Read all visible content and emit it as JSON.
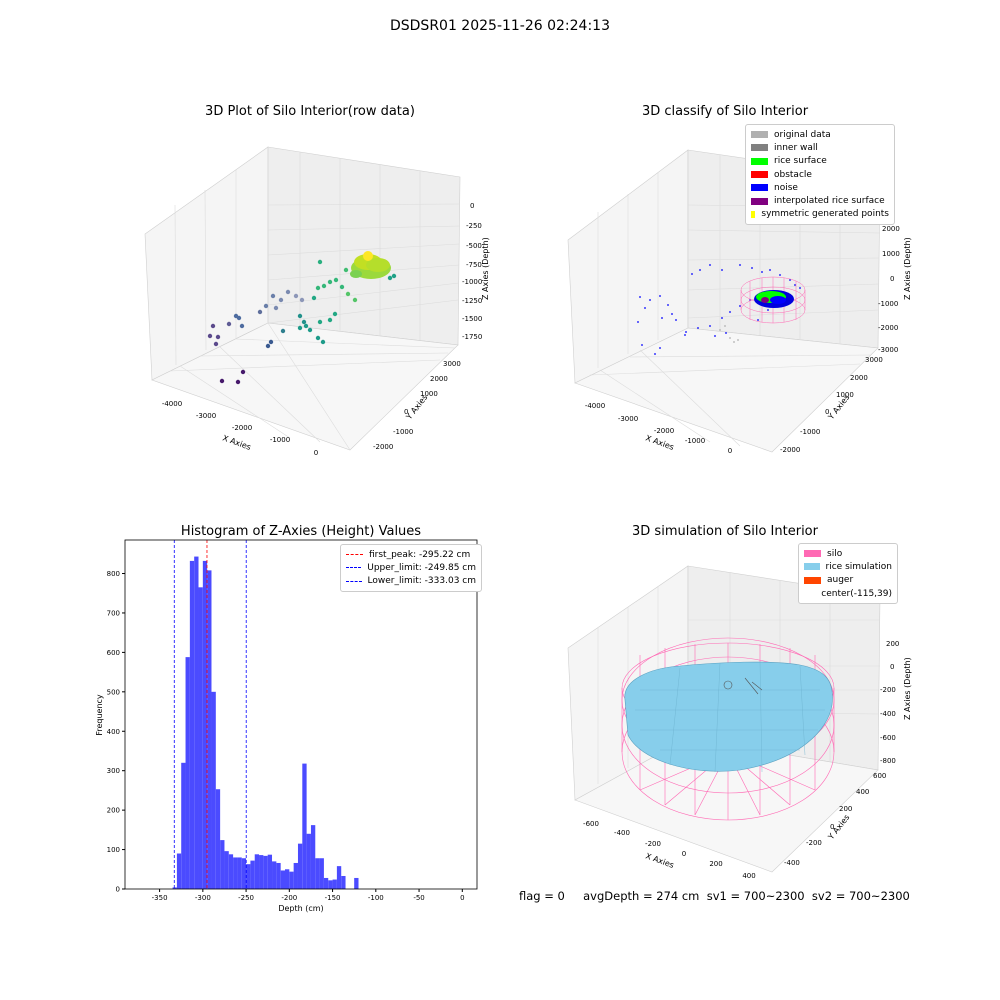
{
  "figure": {
    "title": "DSDSR01 2025-11-26 02:24:13",
    "footer": "flag = 0     avgDepth = 274 cm  sv1 = 700~2300  sv2 = 700~2300"
  },
  "colors": {
    "grid": "#d9d9d9",
    "pane": "#f2f2f2",
    "hist_bar": "#4b4bff",
    "first_peak": "#ff0000",
    "limits": "#0000ff",
    "silo": "#ff69b4",
    "rice_simulation": "#87ceeb",
    "auger": "#ff4500"
  },
  "chart_data": [
    {
      "type": "scatter",
      "subtype": "3d",
      "title": "3D Plot of Silo Interior(row data)",
      "xlabel": "X Axies",
      "ylabel": "Y Axies",
      "zlabel": "Z Axies (Depth)",
      "x_ticks": [
        "-4000",
        "-3000",
        "-2000",
        "-1000",
        "0"
      ],
      "y_ticks": [
        "-2000",
        "-1000",
        "0",
        "1000",
        "2000",
        "3000"
      ],
      "z_ticks": [
        "0",
        "-250",
        "-500",
        "-750",
        "-1000",
        "-1250",
        "-1500",
        "-1750"
      ],
      "colormap": "viridis",
      "clusters": [
        "sparse noise points (purple-teal)",
        "rice surface points (yellow-green)"
      ]
    },
    {
      "type": "scatter",
      "subtype": "3d",
      "title": "3D classify of Silo Interior",
      "xlabel": "X Axies",
      "ylabel": "Y Axies",
      "zlabel": "Z Axies (Depth)",
      "x_ticks": [
        "-4000",
        "-3000",
        "-2000",
        "-1000",
        "0"
      ],
      "y_ticks": [
        "-2000",
        "-1000",
        "0",
        "1000",
        "2000",
        "3000"
      ],
      "z_ticks": [
        "2000",
        "1000",
        "0",
        "-1000",
        "-2000",
        "-3000"
      ],
      "legend_position": "top-right",
      "legend": [
        {
          "label": "original data",
          "color": "#b0b0b0"
        },
        {
          "label": "inner wall",
          "color": "#808080"
        },
        {
          "label": "rice surface",
          "color": "#00ff00"
        },
        {
          "label": "obstacle",
          "color": "#ff0000"
        },
        {
          "label": "noise",
          "color": "#0000ff"
        },
        {
          "label": "interpolated rice surface",
          "color": "#800080"
        },
        {
          "label": "symmetric generated points",
          "color": "#ffff00"
        }
      ]
    },
    {
      "type": "bar",
      "subtype": "histogram",
      "title": "Histogram of Z-Axies (Height) Values",
      "xlabel": "Depth (cm)",
      "ylabel": "Frequency",
      "xlim": [
        -390,
        17
      ],
      "ylim": [
        0,
        885
      ],
      "x_ticks": [
        -350,
        -300,
        -250,
        -200,
        -150,
        -100,
        -50,
        0
      ],
      "y_ticks": [
        0,
        100,
        200,
        300,
        400,
        500,
        600,
        700,
        800
      ],
      "bin_width": 5,
      "bins": [
        {
          "start": -335,
          "count": 4
        },
        {
          "start": -330,
          "count": 90
        },
        {
          "start": -325,
          "count": 320
        },
        {
          "start": -320,
          "count": 588
        },
        {
          "start": -315,
          "count": 832
        },
        {
          "start": -310,
          "count": 843
        },
        {
          "start": -305,
          "count": 765
        },
        {
          "start": -300,
          "count": 832
        },
        {
          "start": -295,
          "count": 808
        },
        {
          "start": -290,
          "count": 500
        },
        {
          "start": -285,
          "count": 253
        },
        {
          "start": -280,
          "count": 124
        },
        {
          "start": -275,
          "count": 96
        },
        {
          "start": -270,
          "count": 88
        },
        {
          "start": -265,
          "count": 80
        },
        {
          "start": -260,
          "count": 80
        },
        {
          "start": -255,
          "count": 78
        },
        {
          "start": -250,
          "count": 63
        },
        {
          "start": -245,
          "count": 72
        },
        {
          "start": -240,
          "count": 88
        },
        {
          "start": -235,
          "count": 86
        },
        {
          "start": -230,
          "count": 84
        },
        {
          "start": -225,
          "count": 87
        },
        {
          "start": -220,
          "count": 70
        },
        {
          "start": -215,
          "count": 66
        },
        {
          "start": -210,
          "count": 47
        },
        {
          "start": -205,
          "count": 50
        },
        {
          "start": -200,
          "count": 44
        },
        {
          "start": -195,
          "count": 66
        },
        {
          "start": -190,
          "count": 115
        },
        {
          "start": -185,
          "count": 318
        },
        {
          "start": -180,
          "count": 140
        },
        {
          "start": -175,
          "count": 162
        },
        {
          "start": -170,
          "count": 78
        },
        {
          "start": -165,
          "count": 78
        },
        {
          "start": -160,
          "count": 28
        },
        {
          "start": -155,
          "count": 22
        },
        {
          "start": -150,
          "count": 24
        },
        {
          "start": -145,
          "count": 58
        },
        {
          "start": -140,
          "count": 33
        },
        {
          "start": -135,
          "count": 0
        },
        {
          "start": -130,
          "count": 0
        },
        {
          "start": -125,
          "count": 28
        }
      ],
      "vlines": [
        {
          "label": "first_peak: -295.22 cm",
          "x": -295.22,
          "color": "#ff0000"
        },
        {
          "label": "Upper_limit: -249.85 cm",
          "x": -249.85,
          "color": "#0000ff"
        },
        {
          "label": "Lower_limit: -333.03 cm",
          "x": -333.03,
          "color": "#0000ff"
        }
      ],
      "legend_position": "top-right"
    },
    {
      "type": "scatter",
      "subtype": "3d-surface",
      "title": "3D simulation of Silo Interior",
      "xlabel": "X Axies",
      "ylabel": "Y Axies",
      "zlabel": "Z Axies (Depth)",
      "x_ticks": [
        "-600",
        "-400",
        "-200",
        "0",
        "200",
        "400"
      ],
      "y_ticks": [
        "-400",
        "-200",
        "0",
        "200",
        "400",
        "600"
      ],
      "z_ticks": [
        "200",
        "0",
        "-200",
        "-400",
        "-600",
        "-800"
      ],
      "legend_position": "top-right",
      "legend": [
        {
          "label": "silo",
          "color": "#ff69b4"
        },
        {
          "label": "rice simulation",
          "color": "#87ceeb"
        },
        {
          "label": "auger",
          "color": "#ff4500"
        },
        {
          "label": "center(-115,39)",
          "color": ""
        }
      ]
    }
  ]
}
